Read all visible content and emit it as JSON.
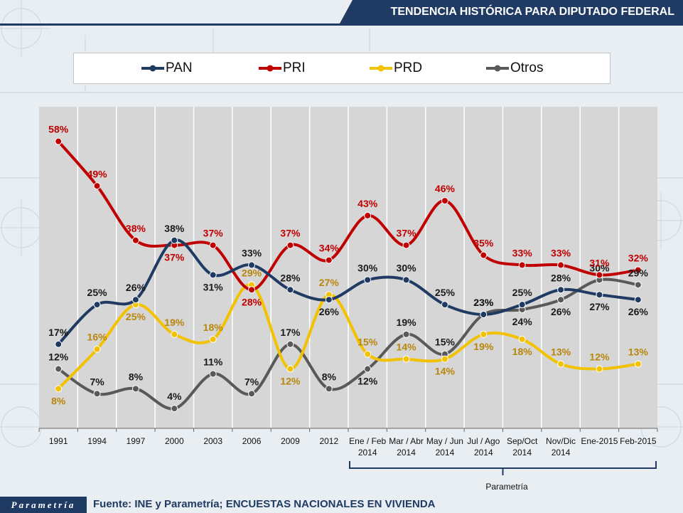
{
  "header": {
    "title": "TENDENCIA HISTÓRICA PARA DIPUTADO FEDERAL"
  },
  "footer": {
    "logo": "Parametría",
    "source": "Fuente: INE y Parametría; ENCUESTAS NACIONALES EN VIVIENDA"
  },
  "annotation": {
    "bracket_label": "Parametría"
  },
  "legend": [
    {
      "name": "PAN",
      "color": "#1f3b63"
    },
    {
      "name": "PRI",
      "color": "#c00000"
    },
    {
      "name": "PRD",
      "color": "#f2c200"
    },
    {
      "name": "Otros",
      "color": "#595959"
    }
  ],
  "chart_data": {
    "type": "line",
    "title": "TENDENCIA HISTÓRICA PARA DIPUTADO FEDERAL",
    "categories": [
      [
        "1991"
      ],
      [
        "1994"
      ],
      [
        "1997"
      ],
      [
        "2000"
      ],
      [
        "2003"
      ],
      [
        "2006"
      ],
      [
        "2009"
      ],
      [
        "2012"
      ],
      [
        "Ene / Feb",
        "2014"
      ],
      [
        "Mar / Abr",
        "2014"
      ],
      [
        "May / Jun",
        "2014"
      ],
      [
        "Jul / Ago",
        "2014"
      ],
      [
        "Sep/Oct",
        "2014"
      ],
      [
        "Nov/Dic",
        "2014"
      ],
      [
        "Ene-2015"
      ],
      [
        "Feb-2015"
      ]
    ],
    "ylim": [
      0,
      65
    ],
    "grid": false,
    "legend_position": "top",
    "series": [
      {
        "name": "PAN",
        "color": "#1f3b63",
        "label_color": "#1a1a1a",
        "values": [
          17,
          25,
          26,
          38,
          31,
          33,
          28,
          26,
          30,
          30,
          25,
          23,
          25,
          28,
          27,
          26
        ],
        "labels": [
          "17%",
          "25%",
          "26%",
          "38%",
          "31%",
          "33%",
          "28%",
          "26%",
          "30%",
          "30%",
          "25%",
          "23%",
          "25%",
          "28%",
          "27%",
          "26%"
        ],
        "label_pos": [
          "above",
          "above",
          "above",
          "above",
          "below",
          "above",
          "above",
          "below",
          "above",
          "above",
          "above",
          "above",
          "above",
          "above",
          "below",
          "below"
        ]
      },
      {
        "name": "PRI",
        "color": "#c00000",
        "label_color": "#c00000",
        "values": [
          58,
          49,
          38,
          37,
          37,
          28,
          37,
          34,
          43,
          37,
          46,
          35,
          33,
          33,
          31,
          32
        ],
        "labels": [
          "58%",
          "49%",
          "38%",
          "37%",
          "37%",
          "28%",
          "37%",
          "34%",
          "43%",
          "37%",
          "46%",
          "35%",
          "33%",
          "33%",
          "31%",
          "32%"
        ],
        "label_pos": [
          "above",
          "above",
          "above",
          "below",
          "above",
          "below",
          "above",
          "above",
          "above",
          "above",
          "above",
          "above",
          "above",
          "above",
          "above",
          "above"
        ]
      },
      {
        "name": "PRD",
        "color": "#f2c200",
        "label_color": "#b8860b",
        "values": [
          8,
          16,
          25,
          19,
          18,
          29,
          12,
          27,
          15,
          14,
          14,
          19,
          18,
          13,
          12,
          13
        ],
        "labels": [
          "8%",
          "16%",
          "25%",
          "19%",
          "18%",
          "29%",
          "12%",
          "27%",
          "15%",
          "14%",
          "14%",
          "19%",
          "18%",
          "13%",
          "12%",
          "13%"
        ],
        "label_pos": [
          "below",
          "above",
          "below",
          "above",
          "above",
          "above",
          "below",
          "above",
          "above",
          "above",
          "below",
          "below",
          "below",
          "above",
          "above",
          "above"
        ]
      },
      {
        "name": "Otros",
        "color": "#595959",
        "label_color": "#1a1a1a",
        "values": [
          12,
          7,
          8,
          4,
          11,
          7,
          17,
          8,
          12,
          19,
          15,
          23,
          24,
          26,
          30,
          29
        ],
        "labels": [
          "12%",
          "7%",
          "8%",
          "4%",
          "11%",
          "7%",
          "17%",
          "8%",
          "12%",
          "19%",
          "15%",
          "23%",
          "24%",
          "26%",
          "30%",
          "29%"
        ],
        "label_pos": [
          "above",
          "above",
          "above",
          "above",
          "above",
          "above",
          "above",
          "above",
          "below",
          "above",
          "above",
          "above",
          "below",
          "below",
          "above",
          "above"
        ]
      }
    ]
  }
}
